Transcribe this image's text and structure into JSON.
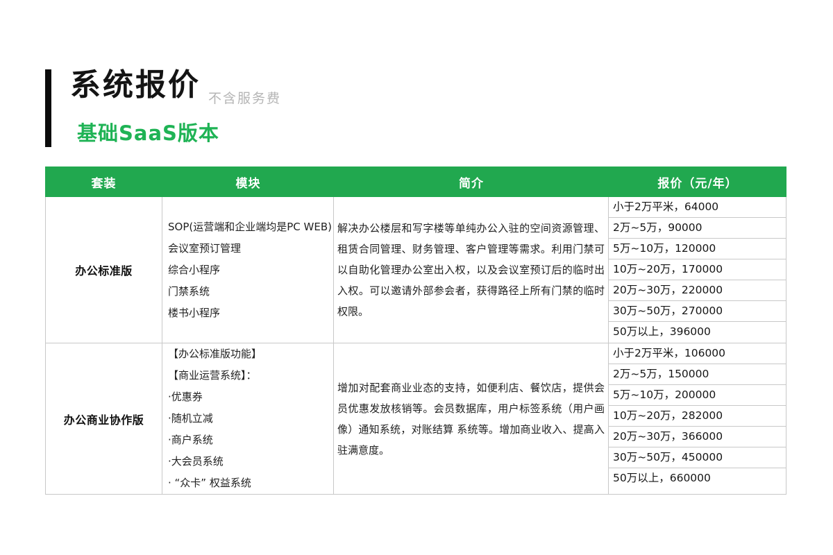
{
  "page": {
    "title": "系统报价",
    "title_note": "不含服务费",
    "subtitle": "基础SaaS版本"
  },
  "colors": {
    "header_green": "#21A84F",
    "subtitle_green": "#1FB355",
    "border_gray": "#C8C8C8"
  },
  "table": {
    "headers": [
      "套装",
      "模块",
      "简介",
      "报价（元/年）"
    ],
    "sections": [
      {
        "package": "办公标准版",
        "modules": [
          "SOP(运营端和企业端均是PC WEB)",
          "会议室预订管理",
          "综合小程序",
          "门禁系统",
          "楼书小程序"
        ],
        "description": "解决办公楼层和写字楼等单纯办公入驻的空间资源管理、租赁合同管理、财务管理、客户管理等需求。利用门禁可以自助化管理办公室出入权，以及会议室预订后的临时出入权。可以邀请外部参会者，获得路径上所有门禁的临时权限。",
        "prices": [
          "小于2万平米，64000",
          "2万~5万，90000",
          "5万~10万，120000",
          "10万~20万，170000",
          "20万~30万，220000",
          "30万~50万，270000",
          "50万以上，396000"
        ]
      },
      {
        "package": "办公商业协作版",
        "modules": [
          "【办公标准版功能】",
          "【商业运营系统】：",
          "·优惠券",
          "·随机立减",
          "·商户系统",
          "·大会员系统",
          "· “众卡” 权益系统"
        ],
        "description": "增加对配套商业业态的支持，如便利店、餐饮店，提供会员优惠发放核销等。会员数据库，用户标签系统（用户画像）通知系统，对账结算 系统等。增加商业收入、提高入驻满意度。",
        "prices": [
          "小于2万平米，106000",
          "2万~5万，150000",
          "5万~10万，200000",
          "10万~20万，282000",
          "20万~30万，366000",
          "30万~50万，450000",
          "50万以上，660000"
        ]
      }
    ]
  }
}
